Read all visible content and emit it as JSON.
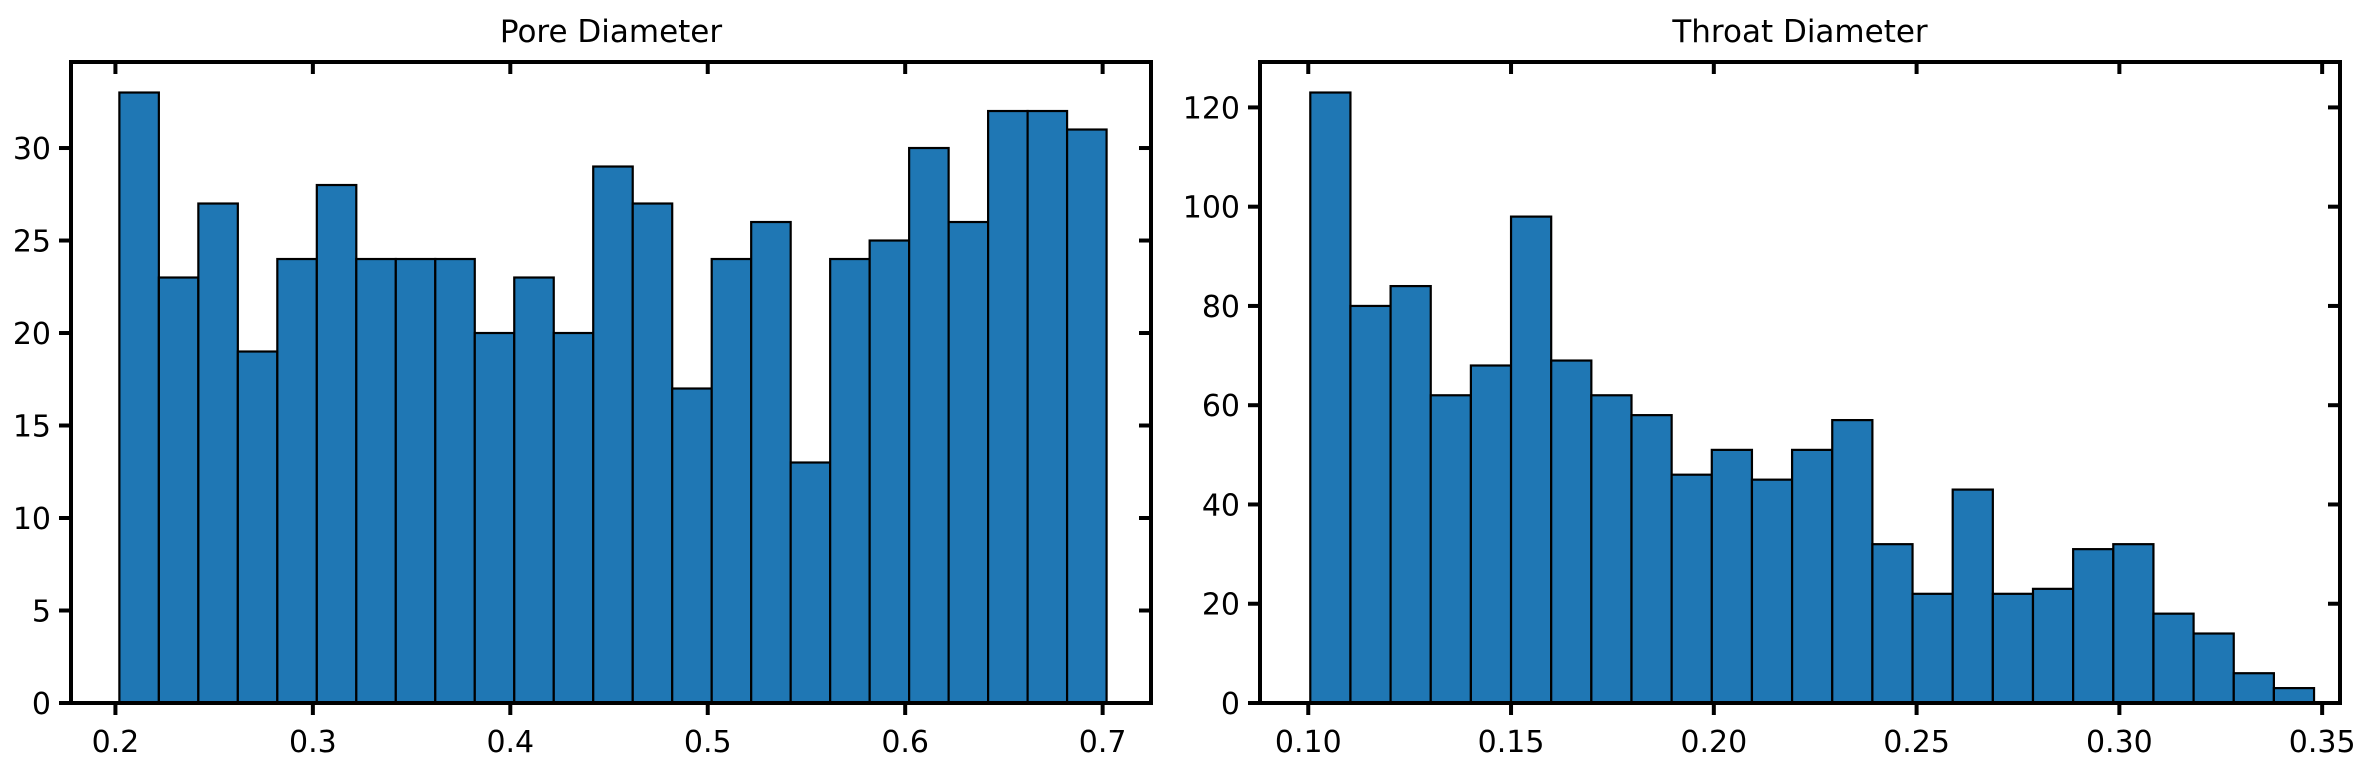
{
  "chart_data": [
    {
      "type": "bar",
      "title": "Pore Diameter",
      "xlabel": "",
      "ylabel": "",
      "color": "#1f77b4",
      "edge_color": "#000000",
      "bin_edges": [
        0.202,
        0.222,
        0.242,
        0.262,
        0.282,
        0.302,
        0.322,
        0.342,
        0.362,
        0.382,
        0.402,
        0.422,
        0.442,
        0.462,
        0.482,
        0.502,
        0.522,
        0.542,
        0.562,
        0.582,
        0.602,
        0.622,
        0.642,
        0.662,
        0.682,
        0.702
      ],
      "values": [
        33,
        23,
        27,
        19,
        24,
        28,
        24,
        24,
        24,
        20,
        23,
        20,
        29,
        27,
        17,
        24,
        26,
        13,
        24,
        25,
        30,
        26,
        32,
        32,
        31
      ],
      "xlim": [
        0.1775,
        0.7245
      ],
      "ylim": [
        0,
        34.65
      ],
      "xticks": [
        0.2,
        0.3,
        0.4,
        0.5,
        0.6,
        0.7
      ],
      "xtick_labels": [
        "0.2",
        "0.3",
        "0.4",
        "0.5",
        "0.6",
        "0.7"
      ],
      "yticks": [
        0,
        5,
        10,
        15,
        20,
        25,
        30
      ],
      "ytick_labels": [
        "0",
        "5",
        "10",
        "15",
        "20",
        "25",
        "30"
      ],
      "grid": false
    },
    {
      "type": "bar",
      "title": "Throat Diameter",
      "xlabel": "",
      "ylabel": "",
      "color": "#1f77b4",
      "edge_color": "#000000",
      "bin_edges": [
        0.1005,
        0.1104,
        0.1203,
        0.1302,
        0.1401,
        0.15,
        0.1599,
        0.1698,
        0.1797,
        0.1896,
        0.1995,
        0.2094,
        0.2193,
        0.2292,
        0.2391,
        0.249,
        0.2589,
        0.2688,
        0.2787,
        0.2886,
        0.2985,
        0.3084,
        0.3183,
        0.3282,
        0.3381,
        0.348
      ],
      "values": [
        123,
        80,
        84,
        62,
        68,
        98,
        69,
        62,
        58,
        46,
        51,
        45,
        51,
        57,
        32,
        22,
        43,
        22,
        23,
        31,
        32,
        18,
        14,
        6,
        3
      ],
      "xlim": [
        0.0881,
        0.3544
      ],
      "ylim": [
        0,
        129.15
      ],
      "xticks": [
        0.1,
        0.15,
        0.2,
        0.25,
        0.3,
        0.35
      ],
      "xtick_labels": [
        "0.10",
        "0.15",
        "0.20",
        "0.25",
        "0.30",
        "0.35"
      ],
      "yticks": [
        0,
        20,
        40,
        60,
        80,
        100,
        120
      ],
      "ytick_labels": [
        "0",
        "20",
        "40",
        "60",
        "80",
        "100",
        "120"
      ],
      "grid": false
    }
  ]
}
